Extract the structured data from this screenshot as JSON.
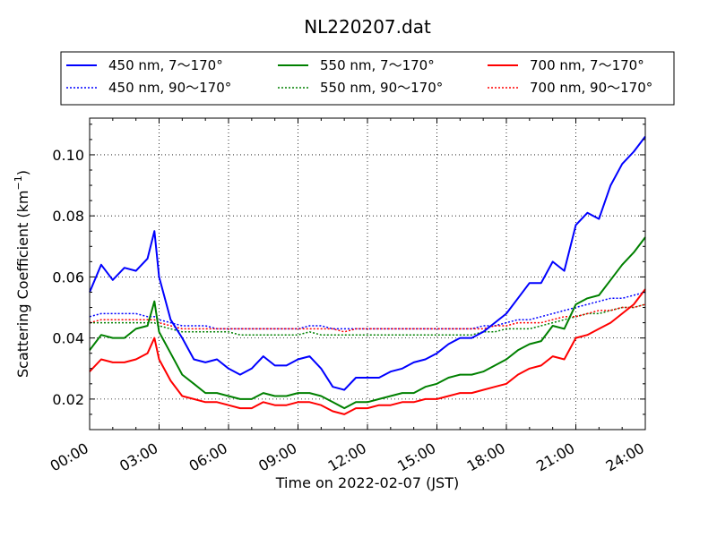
{
  "chart_data": {
    "type": "line",
    "title": "NL220207.dat",
    "xlabel": "Time on 2022-02-07 (JST)",
    "ylabel_main": "Scattering Coefficient (km",
    "ylabel_sup": "−1",
    "ylabel_close": ")",
    "xlim": [
      0,
      24
    ],
    "ylim": [
      0.01,
      0.112
    ],
    "grid": true,
    "grid_style": "dotted",
    "legend_location": "top, above plot, 3 columns",
    "x_ticks": [
      0,
      3,
      6,
      9,
      12,
      15,
      18,
      21,
      24
    ],
    "x_tick_labels": [
      "00:00",
      "03:00",
      "06:00",
      "09:00",
      "12:00",
      "15:00",
      "18:00",
      "21:00",
      "24:00"
    ],
    "y_ticks": [
      0.02,
      0.04,
      0.06,
      0.08,
      0.1
    ],
    "y_tick_labels": [
      "0.02",
      "0.04",
      "0.06",
      "0.08",
      "0.10"
    ],
    "x": [
      0,
      0.5,
      1,
      1.5,
      2,
      2.5,
      2.8,
      3,
      3.5,
      4,
      4.5,
      5,
      5.5,
      6,
      6.5,
      7,
      7.5,
      8,
      8.5,
      9,
      9.5,
      10,
      10.5,
      11,
      11.5,
      12,
      12.5,
      13,
      13.5,
      14,
      14.5,
      15,
      15.5,
      16,
      16.5,
      17,
      17.5,
      18,
      18.5,
      19,
      19.5,
      20,
      20.5,
      21,
      21.5,
      22,
      22.5,
      23,
      23.5,
      24
    ],
    "series": [
      {
        "name": "450 nm, 7～170°",
        "color": "#0000ff",
        "style": "solid",
        "values": [
          0.055,
          0.064,
          0.059,
          0.063,
          0.062,
          0.066,
          0.075,
          0.06,
          0.046,
          0.04,
          0.033,
          0.032,
          0.033,
          0.03,
          0.028,
          0.03,
          0.034,
          0.031,
          0.031,
          0.033,
          0.034,
          0.03,
          0.024,
          0.023,
          0.027,
          0.027,
          0.027,
          0.029,
          0.03,
          0.032,
          0.033,
          0.035,
          0.038,
          0.04,
          0.04,
          0.042,
          0.045,
          0.048,
          0.053,
          0.058,
          0.058,
          0.065,
          0.062,
          0.077,
          0.081,
          0.079,
          0.09,
          0.097,
          0.101,
          0.106
        ]
      },
      {
        "name": "450 nm, 90～170°",
        "color": "#0000ff",
        "style": "dotted",
        "values": [
          0.047,
          0.048,
          0.048,
          0.048,
          0.048,
          0.047,
          0.047,
          0.046,
          0.045,
          0.044,
          0.044,
          0.044,
          0.043,
          0.043,
          0.043,
          0.043,
          0.043,
          0.043,
          0.043,
          0.043,
          0.044,
          0.044,
          0.043,
          0.043,
          0.043,
          0.043,
          0.043,
          0.043,
          0.043,
          0.043,
          0.043,
          0.043,
          0.043,
          0.043,
          0.043,
          0.044,
          0.044,
          0.045,
          0.046,
          0.046,
          0.047,
          0.048,
          0.049,
          0.05,
          0.051,
          0.052,
          0.053,
          0.053,
          0.054,
          0.055
        ]
      },
      {
        "name": "550 nm, 7～170°",
        "color": "#008000",
        "style": "solid",
        "values": [
          0.036,
          0.041,
          0.04,
          0.04,
          0.043,
          0.044,
          0.052,
          0.042,
          0.035,
          0.028,
          0.025,
          0.022,
          0.022,
          0.021,
          0.02,
          0.02,
          0.022,
          0.021,
          0.021,
          0.022,
          0.022,
          0.021,
          0.019,
          0.017,
          0.019,
          0.019,
          0.02,
          0.021,
          0.022,
          0.022,
          0.024,
          0.025,
          0.027,
          0.028,
          0.028,
          0.029,
          0.031,
          0.033,
          0.036,
          0.038,
          0.039,
          0.044,
          0.043,
          0.051,
          0.053,
          0.054,
          0.059,
          0.064,
          0.068,
          0.073
        ]
      },
      {
        "name": "550 nm, 90～170°",
        "color": "#008000",
        "style": "dotted",
        "values": [
          0.045,
          0.045,
          0.045,
          0.045,
          0.045,
          0.045,
          0.045,
          0.044,
          0.043,
          0.042,
          0.042,
          0.042,
          0.042,
          0.042,
          0.041,
          0.041,
          0.041,
          0.041,
          0.041,
          0.041,
          0.042,
          0.041,
          0.041,
          0.041,
          0.041,
          0.041,
          0.041,
          0.041,
          0.041,
          0.041,
          0.041,
          0.041,
          0.041,
          0.041,
          0.041,
          0.042,
          0.042,
          0.043,
          0.043,
          0.043,
          0.044,
          0.045,
          0.046,
          0.047,
          0.048,
          0.048,
          0.049,
          0.05,
          0.05,
          0.051
        ]
      },
      {
        "name": "700 nm, 7～170°",
        "color": "#ff0000",
        "style": "solid",
        "values": [
          0.029,
          0.033,
          0.032,
          0.032,
          0.033,
          0.035,
          0.04,
          0.033,
          0.026,
          0.021,
          0.02,
          0.019,
          0.019,
          0.018,
          0.017,
          0.017,
          0.019,
          0.018,
          0.018,
          0.019,
          0.019,
          0.018,
          0.016,
          0.015,
          0.017,
          0.017,
          0.018,
          0.018,
          0.019,
          0.019,
          0.02,
          0.02,
          0.021,
          0.022,
          0.022,
          0.023,
          0.024,
          0.025,
          0.028,
          0.03,
          0.031,
          0.034,
          0.033,
          0.04,
          0.041,
          0.043,
          0.045,
          0.048,
          0.051,
          0.056
        ]
      },
      {
        "name": "700 nm, 90～170°",
        "color": "#ff0000",
        "style": "dotted",
        "values": [
          0.045,
          0.046,
          0.046,
          0.046,
          0.046,
          0.046,
          0.046,
          0.045,
          0.044,
          0.043,
          0.043,
          0.043,
          0.043,
          0.043,
          0.043,
          0.043,
          0.043,
          0.043,
          0.043,
          0.043,
          0.043,
          0.043,
          0.043,
          0.042,
          0.043,
          0.043,
          0.043,
          0.043,
          0.043,
          0.043,
          0.043,
          0.043,
          0.043,
          0.043,
          0.043,
          0.043,
          0.044,
          0.044,
          0.045,
          0.045,
          0.045,
          0.046,
          0.047,
          0.047,
          0.048,
          0.049,
          0.049,
          0.05,
          0.05,
          0.051
        ]
      }
    ]
  }
}
